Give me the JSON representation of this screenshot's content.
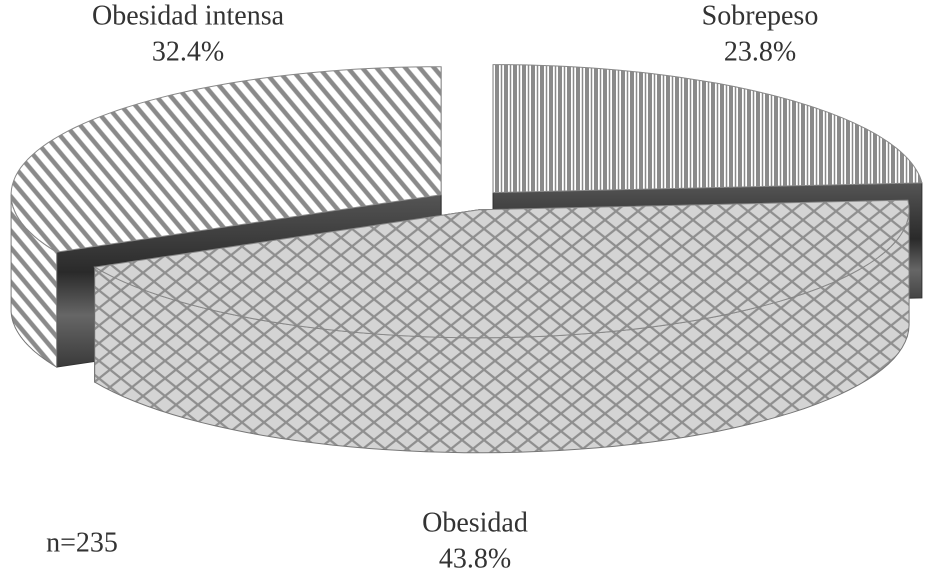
{
  "chart_data": {
    "type": "pie3d",
    "categories": [
      "Sobrepeso",
      "Obesidad",
      "Obesidad intensa"
    ],
    "values": [
      23.8,
      43.8,
      32.4
    ],
    "value_labels": [
      "23.8%",
      "43.8%",
      "32.4%"
    ],
    "colors": [
      "#8a8a8a",
      "#8f8f8f",
      "#8a8a8a"
    ],
    "annotation": "n=235"
  }
}
